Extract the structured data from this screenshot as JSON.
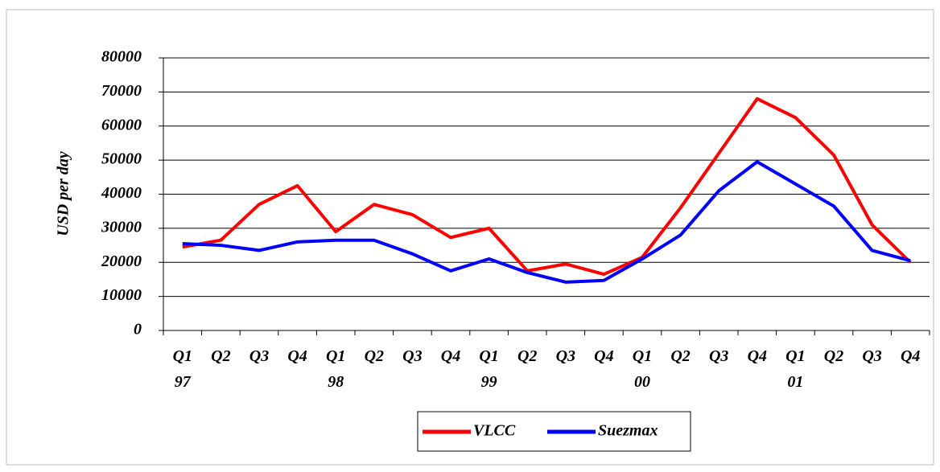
{
  "chart_data": {
    "type": "line",
    "y_label": "USD per day",
    "categories": [
      "Q1 97",
      "Q2",
      "Q3",
      "Q4",
      "Q1 98",
      "Q2",
      "Q3",
      "Q4",
      "Q1 99",
      "Q2",
      "Q3",
      "Q4",
      "Q1 00",
      "Q2",
      "Q3",
      "Q4",
      "Q1 01",
      "Q2",
      "Q3",
      "Q4"
    ],
    "series": [
      {
        "name": "VLCC",
        "color": "#ff0000",
        "values": [
          24500,
          26500,
          37000,
          42500,
          29000,
          37000,
          34000,
          27300,
          30000,
          17500,
          19500,
          16500,
          21500,
          36000,
          52000,
          68000,
          62500,
          51500,
          31000,
          20000
        ]
      },
      {
        "name": "Suezmax",
        "color": "#0000ff",
        "values": [
          25500,
          25000,
          23500,
          26000,
          26500,
          26500,
          22500,
          17500,
          21000,
          17000,
          14200,
          14700,
          21000,
          28000,
          41000,
          49500,
          43000,
          36500,
          23500,
          20500
        ]
      }
    ],
    "ylim": [
      0,
      80000
    ],
    "yticks": [
      0,
      10000,
      20000,
      30000,
      40000,
      50000,
      60000,
      70000,
      80000
    ],
    "grid": true
  }
}
